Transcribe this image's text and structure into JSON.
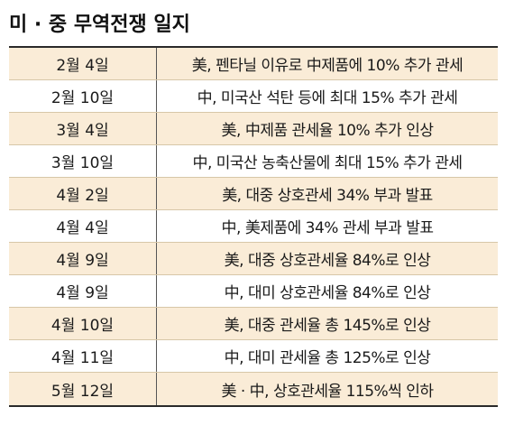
{
  "title": "미 · 중 무역전쟁 일지",
  "rows": [
    {
      "date": "2월 4일",
      "event": "美, 펜타닐 이유로 中제품에 10% 추가 관세"
    },
    {
      "date": "2월 10일",
      "event": "中, 미국산 석탄 등에 최대 15% 추가 관세"
    },
    {
      "date": "3월 4일",
      "event": "美, 中제품 관세율 10% 추가 인상"
    },
    {
      "date": "3월 10일",
      "event": "中, 미국산 농축산물에 최대 15% 추가 관세"
    },
    {
      "date": "4월 2일",
      "event": "美, 대중 상호관세 34% 부과 발표"
    },
    {
      "date": "4월 4일",
      "event": "中, 美제품에 34% 관세 부과 발표"
    },
    {
      "date": "4월 9일",
      "event": "美, 대중 상호관세율 84%로 인상"
    },
    {
      "date": "4월 9일",
      "event": "中, 대미 상호관세율 84%로 인상"
    },
    {
      "date": "4월 10일",
      "event": "美, 대중 관세율 총 145%로 인상"
    },
    {
      "date": "4월 11일",
      "event": "中, 대미 관세율 총 125%로 인상"
    },
    {
      "date": "5월 12일",
      "event": "美 · 中, 상호관세율 115%씩 인하"
    }
  ]
}
